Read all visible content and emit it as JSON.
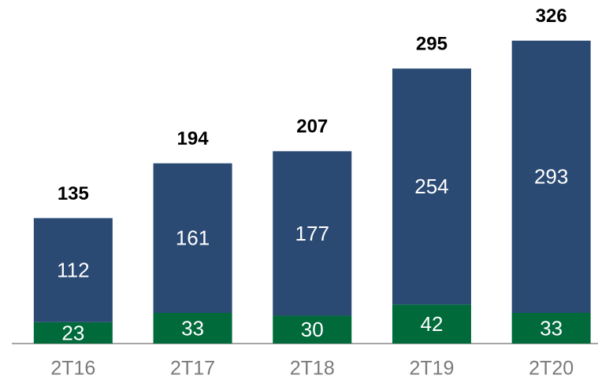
{
  "chart_data": {
    "type": "stacked_bar",
    "categories": [
      "2T16",
      "2T17",
      "2T18",
      "2T19",
      "2T20"
    ],
    "series": [
      {
        "color": "#006a3b",
        "values": [
          23,
          33,
          30,
          42,
          33
        ]
      },
      {
        "color": "#2a4a73",
        "values": [
          112,
          161,
          177,
          254,
          293
        ]
      }
    ],
    "totals": [
      135,
      194,
      207,
      295,
      326
    ],
    "ylim": [
      0,
      330
    ]
  }
}
